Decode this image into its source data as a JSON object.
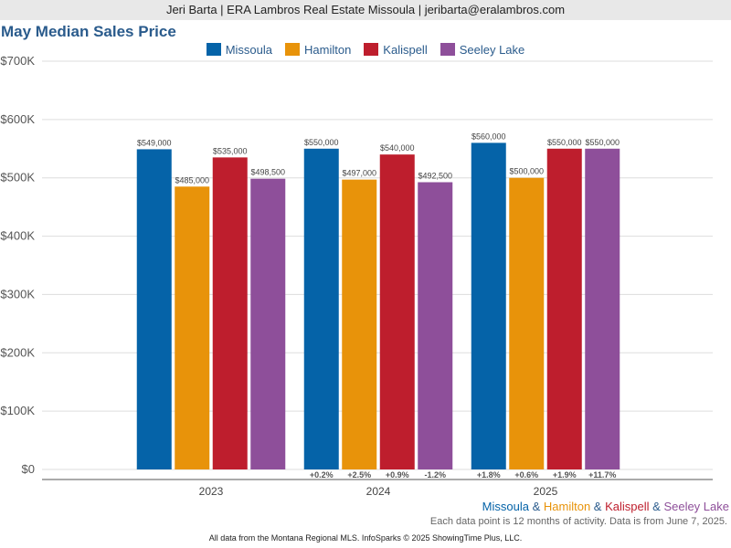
{
  "header": {
    "contact": "Jeri Barta | ERA Lambros Real Estate Missoula | jeribarta@eralambros.com"
  },
  "colors": {
    "Missoula": "#0563a8",
    "Hamilton": "#e8930a",
    "Kalispell": "#be1e2d",
    "Seeley Lake": "#8e4f9a",
    "title": "#2a5b8c"
  },
  "chart_data": {
    "type": "bar",
    "title": "May Median Sales Price",
    "categories": [
      "2023",
      "2024",
      "2025"
    ],
    "series": [
      {
        "name": "Missoula",
        "values": [
          549000,
          550000,
          560000
        ],
        "labels": [
          "$549,000",
          "$550,000",
          "$560,000"
        ],
        "changes": [
          "",
          "+0.2%",
          "+1.8%"
        ]
      },
      {
        "name": "Hamilton",
        "values": [
          485000,
          497000,
          500000
        ],
        "labels": [
          "$485,000",
          "$497,000",
          "$500,000"
        ],
        "changes": [
          "",
          "+2.5%",
          "+0.6%"
        ]
      },
      {
        "name": "Kalispell",
        "values": [
          535000,
          540000,
          550000
        ],
        "labels": [
          "$535,000",
          "$540,000",
          "$550,000"
        ],
        "changes": [
          "",
          "+0.9%",
          "+1.9%"
        ]
      },
      {
        "name": "Seeley Lake",
        "values": [
          498500,
          492500,
          550000
        ],
        "labels": [
          "$498,500",
          "$492,500",
          "$550,000"
        ],
        "changes": [
          "",
          "-1.2%",
          "+11.7%"
        ]
      }
    ],
    "ylim": [
      0,
      700000
    ],
    "yticks": [
      0,
      100000,
      200000,
      300000,
      400000,
      500000,
      600000,
      700000
    ],
    "ytick_labels": [
      "$0",
      "$100K",
      "$200K",
      "$300K",
      "$400K",
      "$500K",
      "$600K",
      "$700K"
    ],
    "grid": true,
    "legend_position": "top-center"
  },
  "footer": {
    "series_names": [
      "Missoula",
      "Hamilton",
      "Kalispell",
      "Seeley Lake"
    ],
    "separator": "&",
    "note": "Each data point is 12 months of activity. Data is from June 7, 2025.",
    "source": "All data from the Montana Regional MLS. InfoSparks © 2025 ShowingTime Plus, LLC."
  }
}
